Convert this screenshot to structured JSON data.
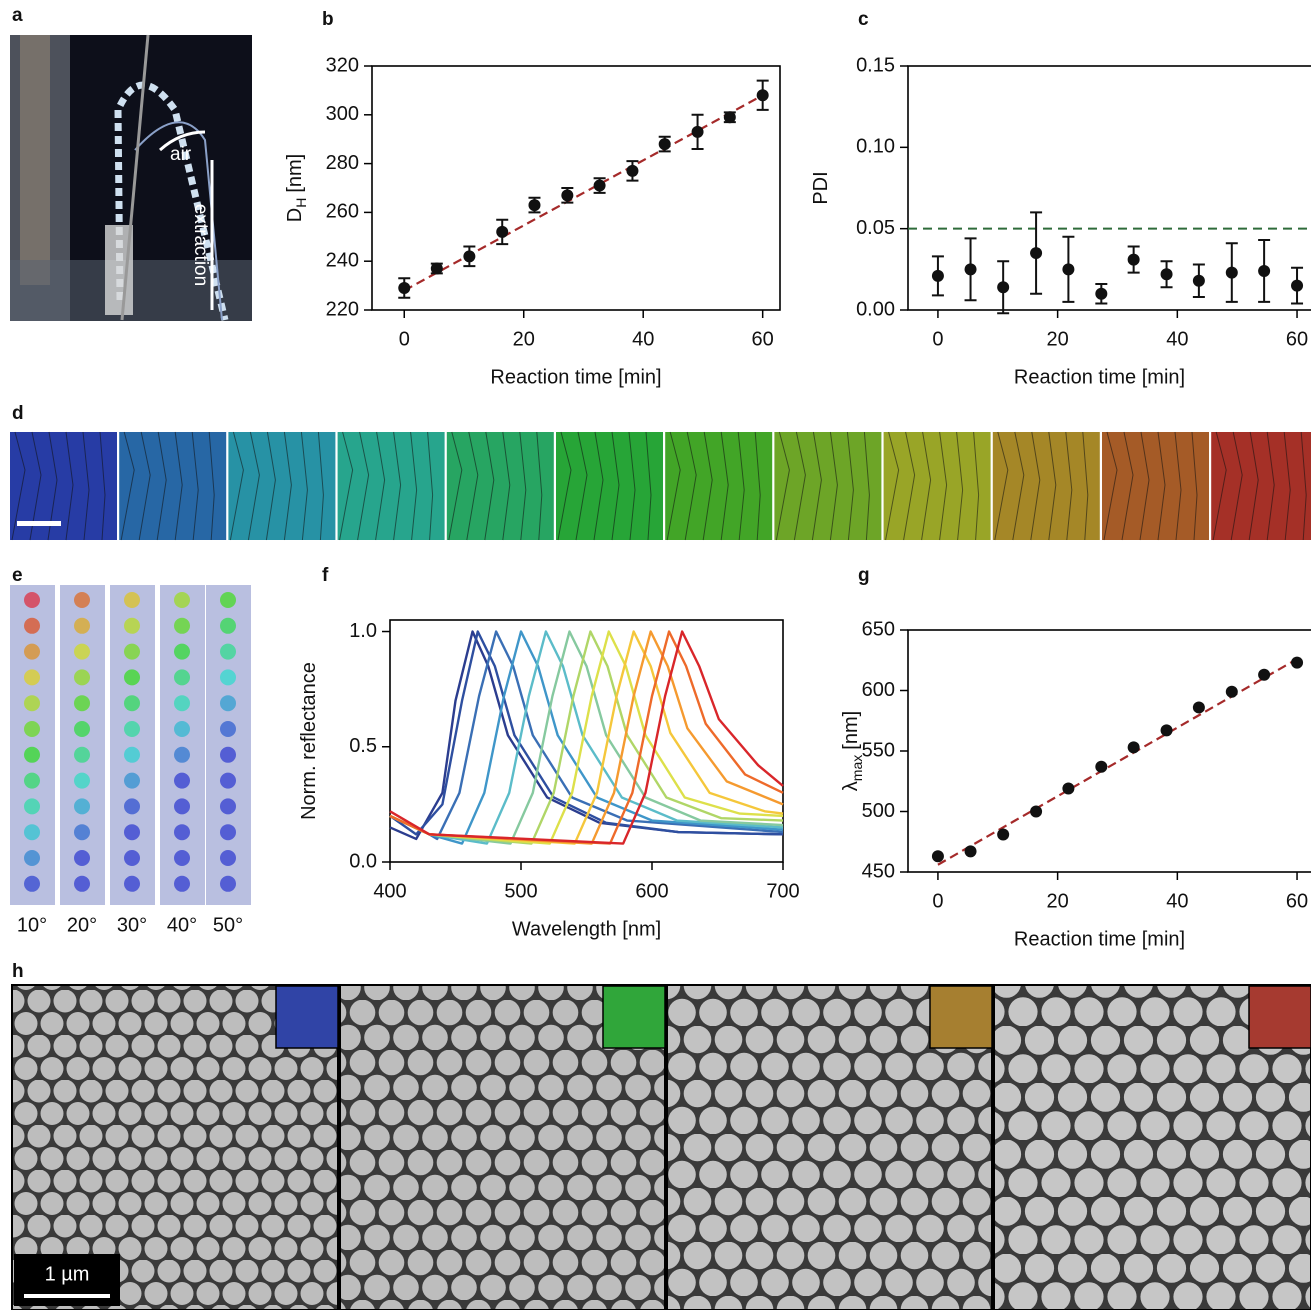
{
  "panel_labels": {
    "a": "a",
    "d": "d",
    "e": "e",
    "h": "h"
  },
  "photo_a": {
    "air": "air",
    "extraction": "extraction"
  },
  "angles": [
    "10°",
    "20°",
    "30°",
    "40°",
    "50°"
  ],
  "scale_bar": "1 µm",
  "chart_data": [
    {
      "type": "scatter",
      "panel": "b",
      "x_label": "Reaction time [min]",
      "y_label": {
        "text": "D",
        "sub": "H",
        "unit": "[nm]"
      },
      "x": [
        0,
        5.45,
        10.9,
        16.4,
        21.8,
        27.3,
        32.7,
        38.2,
        43.6,
        49.1,
        54.5,
        60
      ],
      "values": [
        229,
        237,
        242,
        252,
        263,
        267,
        271,
        277,
        288,
        293,
        299,
        308
      ],
      "errors": [
        4,
        2,
        4,
        5,
        3,
        3,
        3,
        4,
        3,
        7,
        2,
        6
      ],
      "color": "#111111",
      "fit": {
        "x": [
          0,
          60
        ],
        "y": [
          228,
          308
        ],
        "color": "#a52a2a"
      },
      "xlim": [
        -5.4,
        62.9
      ],
      "ylim": [
        220,
        320
      ],
      "xticks": [
        0,
        20,
        40,
        60
      ],
      "yticks": [
        220,
        240,
        260,
        280,
        300,
        320
      ]
    },
    {
      "type": "scatter",
      "panel": "c",
      "x_label": "Reaction time [min]",
      "y_label": {
        "text": "PDI"
      },
      "x": [
        0,
        5.45,
        10.9,
        16.4,
        21.8,
        27.3,
        32.7,
        38.2,
        43.6,
        49.1,
        54.5,
        60
      ],
      "values": [
        0.021,
        0.025,
        0.014,
        0.035,
        0.025,
        0.01,
        0.031,
        0.022,
        0.018,
        0.023,
        0.024,
        0.015
      ],
      "errors": [
        0.012,
        0.019,
        0.016,
        0.025,
        0.02,
        0.006,
        0.008,
        0.008,
        0.01,
        0.018,
        0.019,
        0.011
      ],
      "color": "#111111",
      "reference_line": {
        "y": 0.05,
        "color": "#2e6b3a"
      },
      "xlim": [
        -5,
        62.5
      ],
      "ylim": [
        0,
        0.15
      ],
      "xticks": [
        0,
        20,
        40,
        60
      ],
      "yticks": [
        {
          "value": 0,
          "label": "0.00"
        },
        {
          "value": 0.05,
          "label": "0.05"
        },
        {
          "value": 0.1,
          "label": "0.10"
        },
        {
          "value": 0.15,
          "label": "0.15"
        }
      ]
    },
    {
      "type": "line",
      "panel": "f",
      "x_label": "Wavelength [nm]",
      "y_label": {
        "text": "Norm. reflectance"
      },
      "xlim": [
        400,
        700
      ],
      "ylim": [
        0,
        1.05
      ],
      "xticks": [
        400,
        500,
        600,
        700
      ],
      "yticks": [
        {
          "value": 0,
          "label": "0.0"
        },
        {
          "value": 0.5,
          "label": "0.5"
        },
        {
          "value": 1,
          "label": "1.0"
        }
      ],
      "series": [
        {
          "color": "#2b3d8f",
          "x": [
            400,
            420,
            440,
            450,
            463,
            475,
            490,
            520,
            560,
            620,
            700
          ],
          "values": [
            0.15,
            0.1,
            0.3,
            0.7,
            1.0,
            0.85,
            0.55,
            0.28,
            0.17,
            0.13,
            0.12
          ]
        },
        {
          "color": "#2e4fa0",
          "x": [
            400,
            420,
            440,
            455,
            467,
            480,
            495,
            525,
            565,
            620,
            700
          ],
          "values": [
            0.2,
            0.12,
            0.25,
            0.7,
            1.0,
            0.85,
            0.55,
            0.28,
            0.17,
            0.13,
            0.12
          ]
        },
        {
          "color": "#3a6fb5",
          "x": [
            400,
            430,
            436,
            453,
            468,
            481,
            494,
            509,
            539,
            581,
            700
          ],
          "values": [
            0.2,
            0.12,
            0.1,
            0.3,
            0.72,
            1.0,
            0.85,
            0.55,
            0.28,
            0.18,
            0.13
          ]
        },
        {
          "color": "#3f96c9",
          "x": [
            400,
            430,
            455,
            472,
            487,
            500,
            513,
            528,
            558,
            600,
            700
          ],
          "values": [
            0.2,
            0.12,
            0.08,
            0.3,
            0.72,
            1.0,
            0.85,
            0.55,
            0.28,
            0.18,
            0.14
          ]
        },
        {
          "color": "#5bbcc9",
          "x": [
            400,
            430,
            474,
            491,
            506,
            519,
            532,
            547,
            577,
            619,
            700
          ],
          "values": [
            0.2,
            0.12,
            0.08,
            0.3,
            0.72,
            1.0,
            0.85,
            0.55,
            0.28,
            0.18,
            0.15
          ]
        },
        {
          "color": "#86c99f",
          "x": [
            400,
            430,
            492,
            509,
            524,
            537,
            550,
            565,
            595,
            637,
            700
          ],
          "values": [
            0.2,
            0.12,
            0.08,
            0.3,
            0.72,
            1.0,
            0.85,
            0.55,
            0.28,
            0.18,
            0.16
          ]
        },
        {
          "color": "#b0d667",
          "x": [
            400,
            430,
            508,
            525,
            540,
            553,
            566,
            581,
            611,
            653,
            700
          ],
          "values": [
            0.2,
            0.12,
            0.08,
            0.3,
            0.72,
            1.0,
            0.85,
            0.55,
            0.28,
            0.19,
            0.18
          ]
        },
        {
          "color": "#dde04a",
          "x": [
            400,
            430,
            522,
            539,
            554,
            567,
            580,
            595,
            625,
            667,
            700
          ],
          "values": [
            0.2,
            0.12,
            0.08,
            0.3,
            0.72,
            1.0,
            0.85,
            0.55,
            0.28,
            0.21,
            0.2
          ]
        },
        {
          "color": "#f5c73b",
          "x": [
            400,
            430,
            541,
            558,
            573,
            586,
            599,
            614,
            644,
            686,
            700
          ],
          "values": [
            0.2,
            0.12,
            0.08,
            0.3,
            0.72,
            1.0,
            0.85,
            0.56,
            0.3,
            0.22,
            0.21
          ]
        },
        {
          "color": "#f59a2f",
          "x": [
            400,
            430,
            554,
            571,
            586,
            599,
            612,
            627,
            657,
            700
          ],
          "values": [
            0.2,
            0.12,
            0.08,
            0.3,
            0.72,
            1.0,
            0.85,
            0.58,
            0.35,
            0.25
          ]
        },
        {
          "color": "#ee6a2a",
          "x": [
            400,
            430,
            568,
            585,
            600,
            613,
            626,
            641,
            671,
            700
          ],
          "values": [
            0.2,
            0.12,
            0.08,
            0.3,
            0.72,
            1.0,
            0.85,
            0.6,
            0.38,
            0.3
          ]
        },
        {
          "color": "#d9262a",
          "x": [
            400,
            430,
            578,
            595,
            610,
            623,
            636,
            651,
            681,
            700
          ],
          "values": [
            0.22,
            0.12,
            0.08,
            0.3,
            0.72,
            1.0,
            0.85,
            0.62,
            0.42,
            0.33
          ]
        }
      ]
    },
    {
      "type": "scatter",
      "panel": "g",
      "x_label": "Reaction time [min]",
      "y_label": {
        "text": "λ",
        "sub": "max",
        "unit": "[nm]"
      },
      "x": [
        0,
        5.45,
        10.9,
        16.4,
        21.8,
        27.3,
        32.7,
        38.2,
        43.6,
        49.1,
        54.5,
        60
      ],
      "values": [
        463,
        467,
        481,
        500,
        519,
        537,
        553,
        567,
        586,
        599,
        613,
        623
      ],
      "color": "#111111",
      "fit": {
        "x": [
          0,
          60
        ],
        "y": [
          456,
          626
        ],
        "color": "#a52a2a"
      },
      "xlim": [
        -5,
        62.5
      ],
      "ylim": [
        450,
        650
      ],
      "xticks": [
        0,
        20,
        40,
        60
      ],
      "yticks": [
        450,
        500,
        550,
        600,
        650
      ]
    }
  ]
}
